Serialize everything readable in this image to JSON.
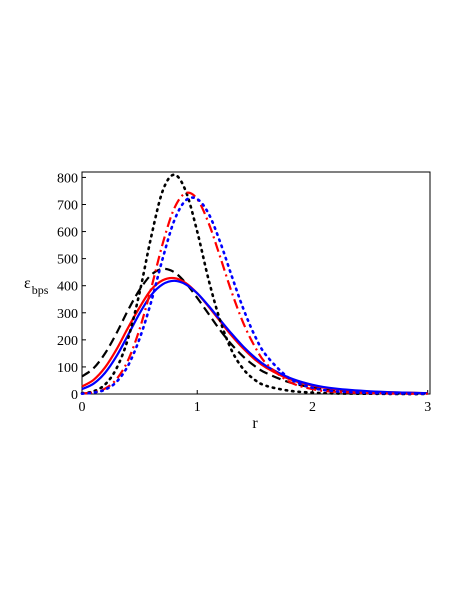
{
  "chart_data": {
    "type": "line",
    "title": "",
    "xlabel": "r",
    "ylabel": "ε",
    "ylabel_sub": "bps",
    "xlim": [
      0,
      3.02
    ],
    "ylim": [
      0,
      820
    ],
    "xticks": [
      0,
      1,
      2,
      3
    ],
    "xtick_labels": [
      "0",
      "1",
      "2",
      "3"
    ],
    "yticks": [
      0,
      100,
      200,
      300,
      400,
      500,
      600,
      700,
      800
    ],
    "ytick_labels": [
      "0",
      "100",
      "200",
      "300",
      "400",
      "500",
      "600",
      "700",
      "800"
    ],
    "grid": false,
    "legend": "none",
    "series": [
      {
        "color": "#000000",
        "style": "dashed",
        "x": [
          0,
          0.1,
          0.2,
          0.3,
          0.4,
          0.5,
          0.6,
          0.7,
          0.8,
          0.9,
          1.0,
          1.1,
          1.2,
          1.3,
          1.4,
          1.5,
          1.6,
          1.8,
          2.0,
          2.2,
          2.5,
          2.8,
          3.0
        ],
        "y": [
          65,
          95,
          150,
          225,
          310,
          385,
          440,
          462,
          450,
          410,
          355,
          295,
          235,
          182,
          138,
          103,
          77,
          43,
          24,
          14,
          7,
          4,
          3
        ]
      },
      {
        "color": "#ff0000",
        "style": "solid",
        "x": [
          0,
          0.1,
          0.2,
          0.3,
          0.4,
          0.5,
          0.6,
          0.7,
          0.8,
          0.9,
          1.0,
          1.1,
          1.2,
          1.3,
          1.4,
          1.5,
          1.6,
          1.8,
          2.0,
          2.2,
          2.5,
          2.8,
          3.0
        ],
        "y": [
          28,
          52,
          98,
          165,
          245,
          320,
          385,
          420,
          428,
          410,
          372,
          322,
          268,
          215,
          168,
          128,
          97,
          55,
          31,
          18,
          9,
          5,
          3
        ]
      },
      {
        "color": "#0000ff",
        "style": "solid",
        "x": [
          0,
          0.1,
          0.2,
          0.3,
          0.4,
          0.5,
          0.6,
          0.7,
          0.8,
          0.9,
          1.0,
          1.1,
          1.2,
          1.3,
          1.4,
          1.5,
          1.6,
          1.8,
          2.0,
          2.2,
          2.5,
          2.8,
          3.0
        ],
        "y": [
          18,
          38,
          78,
          140,
          218,
          298,
          365,
          405,
          418,
          405,
          372,
          325,
          273,
          222,
          175,
          135,
          103,
          60,
          34,
          20,
          10,
          5,
          3
        ]
      },
      {
        "color": "#000000",
        "style": "dotted",
        "x": [
          0,
          0.1,
          0.2,
          0.3,
          0.4,
          0.5,
          0.6,
          0.7,
          0.8,
          0.9,
          1.0,
          1.1,
          1.2,
          1.3,
          1.4,
          1.5,
          1.6,
          1.8,
          2.0,
          2.2,
          2.5,
          2.8,
          3.0
        ],
        "y": [
          3,
          10,
          35,
          95,
          205,
          375,
          580,
          750,
          810,
          750,
          600,
          420,
          270,
          160,
          92,
          52,
          30,
          12,
          5,
          2,
          1,
          0,
          0
        ]
      },
      {
        "color": "#ff0000",
        "style": "dashdot",
        "x": [
          0,
          0.1,
          0.2,
          0.3,
          0.4,
          0.5,
          0.6,
          0.7,
          0.8,
          0.9,
          1.0,
          1.1,
          1.2,
          1.3,
          1.4,
          1.5,
          1.6,
          1.8,
          2.0,
          2.2,
          2.5,
          2.8,
          3.0
        ],
        "y": [
          2,
          6,
          20,
          55,
          125,
          240,
          390,
          555,
          685,
          742,
          720,
          630,
          505,
          375,
          262,
          175,
          112,
          45,
          18,
          8,
          3,
          1,
          1
        ]
      },
      {
        "color": "#0000ff",
        "style": "dotted",
        "x": [
          0,
          0.1,
          0.2,
          0.3,
          0.4,
          0.5,
          0.6,
          0.7,
          0.8,
          0.9,
          1.0,
          1.1,
          1.2,
          1.3,
          1.4,
          1.5,
          1.6,
          1.8,
          2.0,
          2.2,
          2.5,
          2.8,
          3.0
        ],
        "y": [
          1,
          5,
          16,
          45,
          105,
          205,
          340,
          500,
          640,
          715,
          720,
          665,
          560,
          435,
          315,
          215,
          142,
          58,
          23,
          10,
          4,
          2,
          1
        ]
      }
    ]
  }
}
